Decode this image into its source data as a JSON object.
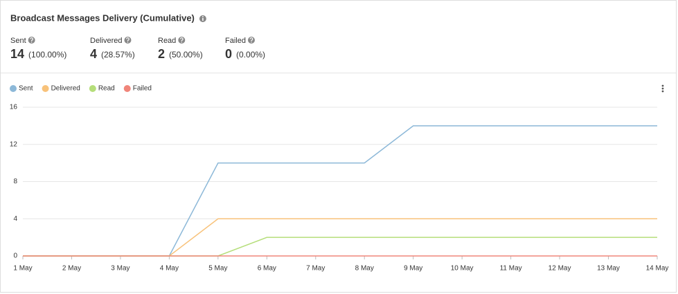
{
  "header": {
    "title": "Broadcast Messages Delivery (Cumulative)"
  },
  "stats": [
    {
      "label": "Sent",
      "value": 14,
      "percent": "(100.00%)"
    },
    {
      "label": "Delivered",
      "value": 4,
      "percent": "(28.57%)"
    },
    {
      "label": "Read",
      "value": 2,
      "percent": "(50.00%)"
    },
    {
      "label": "Failed",
      "value": 0,
      "percent": "(0.00%)"
    }
  ],
  "chart_data": {
    "type": "line",
    "categories": [
      "1 May",
      "2 May",
      "3 May",
      "4 May",
      "5 May",
      "6 May",
      "7 May",
      "8 May",
      "9 May",
      "10 May",
      "11 May",
      "12 May",
      "13 May",
      "14 May"
    ],
    "series": [
      {
        "name": "Sent",
        "color": "#8cb8d8",
        "values": [
          0,
          0,
          0,
          0,
          10,
          10,
          10,
          10,
          14,
          14,
          14,
          14,
          14,
          14
        ]
      },
      {
        "name": "Delivered",
        "color": "#f8c27a",
        "values": [
          0,
          0,
          0,
          0,
          4,
          4,
          4,
          4,
          4,
          4,
          4,
          4,
          4,
          4
        ]
      },
      {
        "name": "Read",
        "color": "#b5de7a",
        "values": [
          0,
          0,
          0,
          0,
          0,
          2,
          2,
          2,
          2,
          2,
          2,
          2,
          2,
          2
        ]
      },
      {
        "name": "Failed",
        "color": "#f0857a",
        "values": [
          0,
          0,
          0,
          0,
          0,
          0,
          0,
          0,
          0,
          0,
          0,
          0,
          0,
          0
        ]
      }
    ],
    "ylim": [
      0,
      16
    ],
    "yticks": [
      0,
      4,
      8,
      12,
      16
    ],
    "grid": true,
    "legend": "top-left"
  }
}
